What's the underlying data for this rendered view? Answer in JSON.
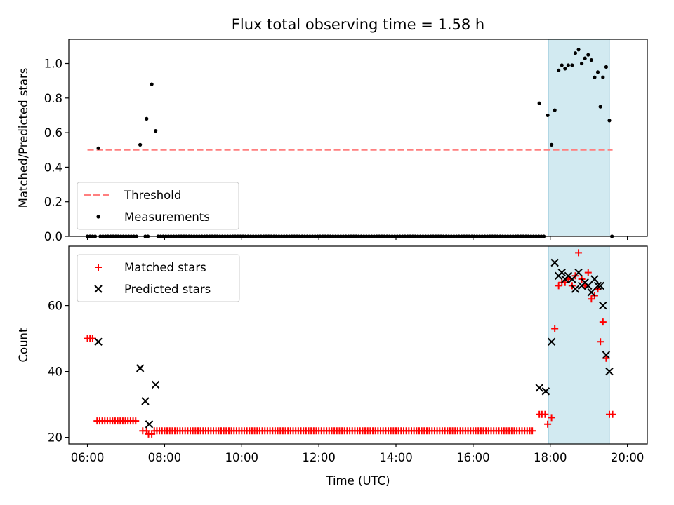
{
  "title": "Flux total observing time = 1.58 h",
  "chart_data": [
    {
      "type": "scatter",
      "ylabel": "Matched/Predicted stars",
      "xlim": [
        "05:31",
        "20:31"
      ],
      "ylim": [
        0,
        1.14
      ],
      "yticks": [
        "0.0",
        "0.2",
        "0.4",
        "0.6",
        "0.8",
        "1.0"
      ],
      "span": {
        "start": "17:57",
        "end": "19:32",
        "color": "#add8e6"
      },
      "threshold": {
        "value": 0.5,
        "from": "06:00",
        "to": "19:37",
        "color": "#ff7f7f",
        "style": "dashed"
      },
      "legend": {
        "position": "lower-left",
        "entries": [
          "Threshold",
          "Measurements"
        ]
      },
      "series": [
        {
          "name": "Threshold",
          "color": "#ff7f7f"
        },
        {
          "name": "Measurements",
          "color": "#000000",
          "marker": "dot",
          "points": [
            [
              "06:17",
              0.51
            ],
            [
              "07:22",
              0.53
            ],
            [
              "07:32",
              0.68
            ],
            [
              "07:40",
              0.88
            ],
            [
              "07:46",
              0.61
            ],
            [
              "17:43",
              0.77
            ],
            [
              "17:56",
              0.7
            ],
            [
              "18:02",
              0.53
            ],
            [
              "18:07",
              0.73
            ],
            [
              "18:13",
              0.96
            ],
            [
              "18:18",
              0.99
            ],
            [
              "18:23",
              0.97
            ],
            [
              "18:28",
              0.99
            ],
            [
              "18:34",
              0.99
            ],
            [
              "18:39",
              1.06
            ],
            [
              "18:44",
              1.08
            ],
            [
              "18:49",
              1.0
            ],
            [
              "18:54",
              1.03
            ],
            [
              "18:59",
              1.05
            ],
            [
              "19:04",
              1.02
            ],
            [
              "19:09",
              0.92
            ],
            [
              "19:14",
              0.95
            ],
            [
              "19:18",
              0.75
            ],
            [
              "19:22",
              0.92
            ],
            [
              "19:27",
              0.98
            ],
            [
              "19:32",
              0.67
            ],
            [
              "19:36",
              0.0
            ]
          ],
          "zero_run": {
            "value": 0,
            "segments": [
              [
                "06:00",
                "06:15"
              ],
              [
                "06:20",
                "07:18"
              ],
              [
                "07:30",
                "07:36"
              ],
              [
                "07:50",
                "17:50"
              ]
            ],
            "step_minutes": 4
          }
        }
      ]
    },
    {
      "type": "scatter",
      "xlabel": "Time (UTC)",
      "ylabel": "Count",
      "xlim": [
        "05:31",
        "20:31"
      ],
      "ylim": [
        18,
        78
      ],
      "xticks": [
        "06:00",
        "08:00",
        "10:00",
        "12:00",
        "14:00",
        "16:00",
        "18:00",
        "20:00"
      ],
      "yticks": [
        "20",
        "40",
        "60"
      ],
      "span": {
        "start": "17:57",
        "end": "19:32",
        "color": "#add8e6"
      },
      "legend": {
        "position": "upper-left",
        "entries": [
          "Matched stars",
          "Predicted stars"
        ]
      },
      "series": [
        {
          "name": "Matched stars",
          "color": "#ff0000",
          "marker": "plus",
          "points": [
            [
              "06:00",
              50
            ],
            [
              "06:04",
              50
            ],
            [
              "06:08",
              50
            ],
            [
              "07:26",
              22
            ],
            [
              "07:32",
              22
            ],
            [
              "07:35",
              21
            ],
            [
              "07:40",
              21
            ],
            [
              "07:44",
              22
            ],
            [
              "07:48",
              22
            ],
            [
              "07:52",
              22
            ],
            [
              "17:43",
              27
            ],
            [
              "17:47",
              27
            ],
            [
              "17:52",
              27
            ],
            [
              "17:56",
              24
            ],
            [
              "18:02",
              26
            ],
            [
              "18:07",
              53
            ],
            [
              "18:13",
              66
            ],
            [
              "18:18",
              67
            ],
            [
              "18:23",
              67
            ],
            [
              "18:28",
              68
            ],
            [
              "18:34",
              66
            ],
            [
              "18:39",
              69
            ],
            [
              "18:44",
              76
            ],
            [
              "18:49",
              68
            ],
            [
              "18:54",
              66
            ],
            [
              "18:59",
              70
            ],
            [
              "19:04",
              62
            ],
            [
              "19:09",
              63
            ],
            [
              "19:14",
              65
            ],
            [
              "19:18",
              49
            ],
            [
              "19:22",
              55
            ],
            [
              "19:27",
              44
            ],
            [
              "19:32",
              27
            ],
            [
              "19:37",
              27
            ]
          ],
          "runs": [
            {
              "value": 25,
              "from": "06:15",
              "to": "07:18",
              "step_minutes": 4
            },
            {
              "value": 22,
              "from": "07:56",
              "to": "17:35",
              "step_minutes": 4
            }
          ]
        },
        {
          "name": "Predicted stars",
          "color": "#000000",
          "marker": "x",
          "points": [
            [
              "06:17",
              49
            ],
            [
              "07:22",
              41
            ],
            [
              "07:30",
              31
            ],
            [
              "07:36",
              24
            ],
            [
              "07:46",
              36
            ],
            [
              "17:43",
              35
            ],
            [
              "17:53",
              34
            ],
            [
              "18:02",
              49
            ],
            [
              "18:07",
              73
            ],
            [
              "18:13",
              69
            ],
            [
              "18:18",
              70
            ],
            [
              "18:23",
              68
            ],
            [
              "18:28",
              69
            ],
            [
              "18:34",
              68
            ],
            [
              "18:39",
              65
            ],
            [
              "18:44",
              70
            ],
            [
              "18:49",
              66
            ],
            [
              "18:54",
              67
            ],
            [
              "18:59",
              66
            ],
            [
              "19:04",
              64
            ],
            [
              "19:09",
              68
            ],
            [
              "19:14",
              66
            ],
            [
              "19:18",
              66
            ],
            [
              "19:22",
              60
            ],
            [
              "19:27",
              45
            ],
            [
              "19:32",
              40
            ]
          ]
        }
      ]
    }
  ]
}
